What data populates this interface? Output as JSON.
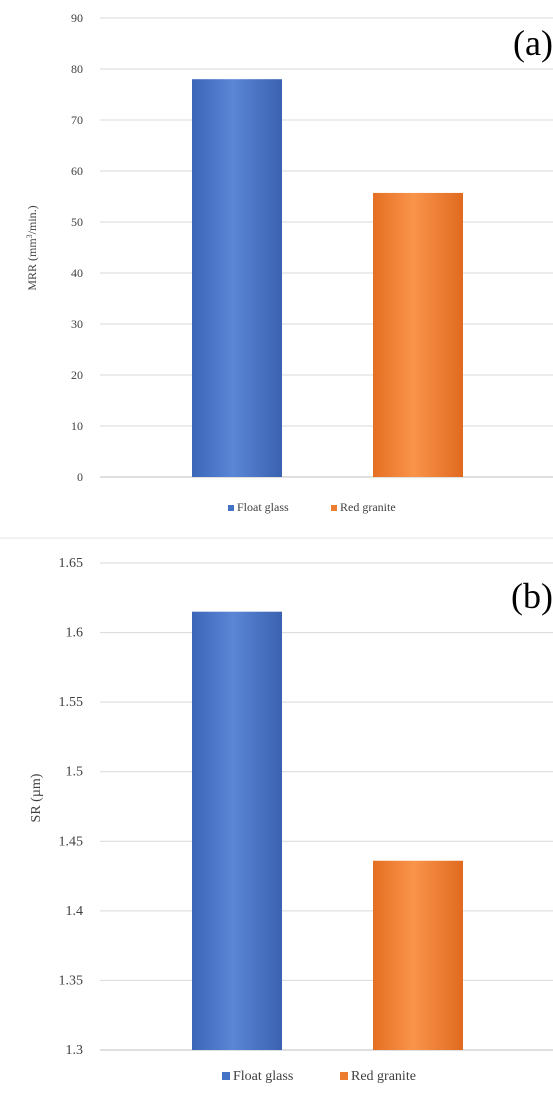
{
  "chart_data": [
    {
      "type": "bar",
      "panel_label": "(a)",
      "categories": [
        "Float glass",
        "Red granite"
      ],
      "series": [
        {
          "name": "Float glass",
          "values": [
            78,
            null
          ]
        },
        {
          "name": "Red granite",
          "values": [
            null,
            55.7
          ]
        }
      ],
      "values": [
        78,
        55.7
      ],
      "ylabel": "MRR (mm³/min.)",
      "xlabel": "",
      "ylim": [
        0,
        90
      ],
      "yticks": [
        0,
        10,
        20,
        30,
        40,
        50,
        60,
        70,
        80,
        90
      ],
      "ytick_labels": [
        "0",
        "10",
        "20",
        "30",
        "40",
        "50",
        "60",
        "70",
        "80",
        "90"
      ],
      "grid": true,
      "legend": [
        "Float glass",
        "Red granite"
      ],
      "legend_position": "bottom",
      "colors": [
        "#4472c4",
        "#ed7d31"
      ]
    },
    {
      "type": "bar",
      "panel_label": "(b)",
      "categories": [
        "Float glass",
        "Red granite"
      ],
      "series": [
        {
          "name": "Float glass",
          "values": [
            1.615,
            null
          ]
        },
        {
          "name": "Red granite",
          "values": [
            null,
            1.436
          ]
        }
      ],
      "values": [
        1.615,
        1.436
      ],
      "ylabel": "SR (µm)",
      "xlabel": "",
      "ylim": [
        1.3,
        1.65
      ],
      "yticks": [
        1.3,
        1.35,
        1.4,
        1.45,
        1.5,
        1.55,
        1.6,
        1.65
      ],
      "ytick_labels": [
        "1.3",
        "1.35",
        "1.4",
        "1.45",
        "1.5",
        "1.55",
        "1.6",
        "1.65"
      ],
      "grid": true,
      "legend": [
        "Float glass",
        "Red granite"
      ],
      "legend_position": "bottom",
      "colors": [
        "#4472c4",
        "#ed7d31"
      ]
    }
  ]
}
